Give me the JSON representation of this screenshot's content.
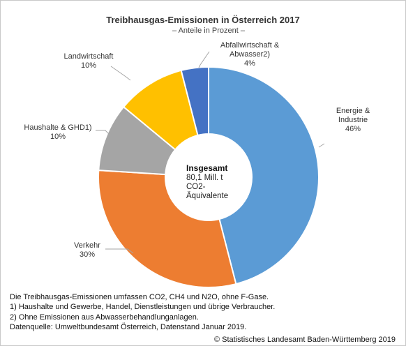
{
  "chart_data": {
    "type": "pie",
    "variant": "donut",
    "title": "Treibhausgas-Emissionen in Österreich 2017",
    "subtitle": "– Anteile in Prozent –",
    "slices": [
      {
        "name_lines": [
          "Energie &",
          "Industrie"
        ],
        "value": 46,
        "value_label": "46%",
        "color": "#5b9bd5"
      },
      {
        "name_lines": [
          "Verkehr"
        ],
        "value": 30,
        "value_label": "30%",
        "color": "#ed7d31"
      },
      {
        "name_lines": [
          "Haushalte & GHD1)"
        ],
        "value": 10,
        "value_label": "10%",
        "color": "#a5a5a5"
      },
      {
        "name_lines": [
          "Landwirtschaft"
        ],
        "value": 10,
        "value_label": "10%",
        "color": "#ffc000"
      },
      {
        "name_lines": [
          "Abfallwirtschaft &",
          "Abwasser2)"
        ],
        "value": 4,
        "value_label": "4%",
        "color": "#4472c4"
      }
    ],
    "center": {
      "bold": "Insgesamt",
      "lines": [
        "80,1 Mill. t",
        "CO2-",
        "Äquivalente"
      ]
    }
  },
  "footnotes": [
    "Die Treibhausgas-Emissionen umfassen CO2, CH4 und N2O, ohne F-Gase.",
    "1) Haushalte und Gewerbe, Handel, Dienstleistungen und übrige Verbraucher.",
    "2) Ohne Emissionen aus Abwasserbehandlunganlagen.",
    "Datenquelle: Umweltbundesamt Österreich, Datenstand Januar 2019."
  ],
  "copyright": "© Statistisches Landesamt Baden-Württemberg 2019"
}
